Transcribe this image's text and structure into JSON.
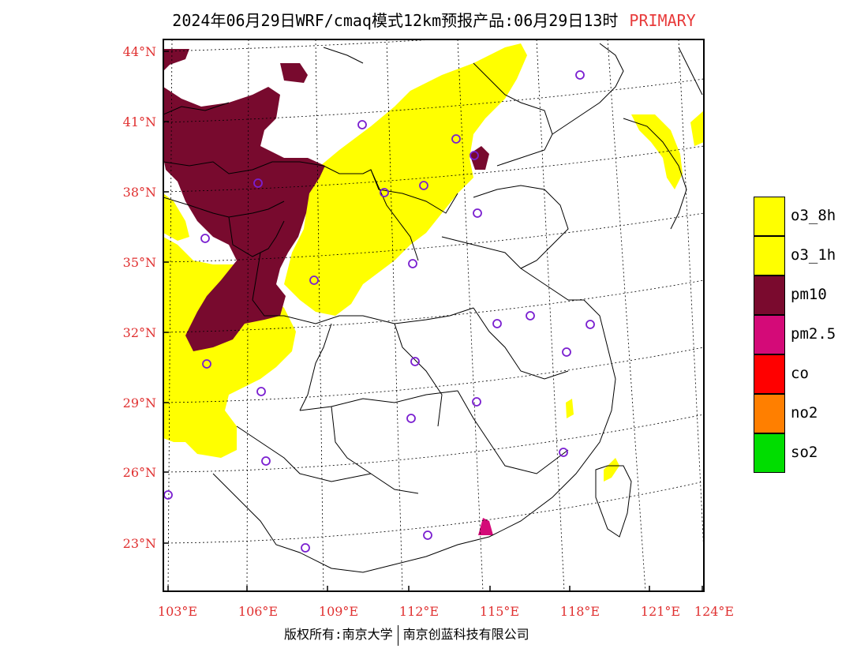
{
  "title": {
    "main": "2024年06月29日WRF/cmaq模式12km预报产品:06月29日13时",
    "tag": "PRIMARY"
  },
  "lat_labels": [
    "44°N",
    "41°N",
    "38°N",
    "35°N",
    "32°N",
    "29°N",
    "26°N",
    "23°N"
  ],
  "lon_labels": [
    "103°E",
    "106°E",
    "109°E",
    "112°E",
    "115°E",
    "118°E",
    "121°E",
    "124°E"
  ],
  "legend": [
    {
      "label": "o3_8h",
      "color": "#ffff00"
    },
    {
      "label": "o3_1h",
      "color": "#ffff00"
    },
    {
      "label": "pm10",
      "color": "#7a0a2e"
    },
    {
      "label": "pm2.5",
      "color": "#d40a78"
    },
    {
      "label": "co",
      "color": "#ff0000"
    },
    {
      "label": "no2",
      "color": "#ff7f00"
    },
    {
      "label": "so2",
      "color": "#00dd00"
    }
  ],
  "footer": {
    "left": "版权所有:南京大学",
    "right": "南京创蓝科技有限公司"
  }
}
